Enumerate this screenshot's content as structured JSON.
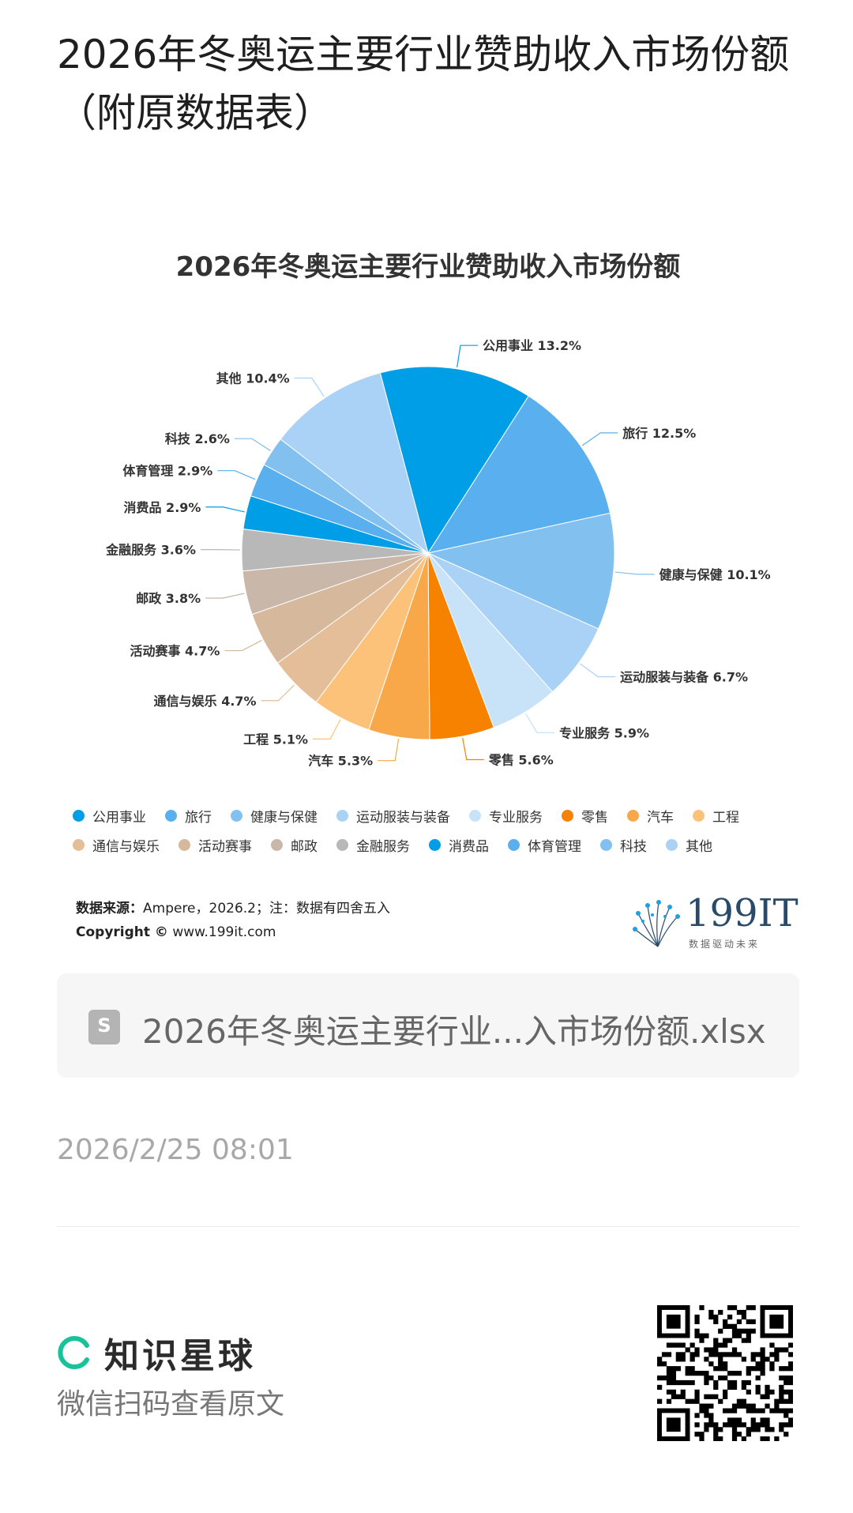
{
  "page": {
    "title": "2026年冬奥运主要行业赞助收入市场份额（附原数据表）"
  },
  "chart_data": {
    "type": "pie",
    "title": "2026年冬奥运主要行业赞助收入市场份额",
    "unit": "%",
    "slices": [
      {
        "label": "公用事业",
        "value": 13.2,
        "color": "#009ee6"
      },
      {
        "label": "旅行",
        "value": 12.5,
        "color": "#5aafee"
      },
      {
        "label": "健康与保健",
        "value": 10.1,
        "color": "#82c0f0"
      },
      {
        "label": "运动服装与装备",
        "value": 6.7,
        "color": "#aad2f6"
      },
      {
        "label": "专业服务",
        "value": 5.9,
        "color": "#c8e2f8"
      },
      {
        "label": "零售",
        "value": 5.6,
        "color": "#f78200"
      },
      {
        "label": "汽车",
        "value": 5.3,
        "color": "#f8a848"
      },
      {
        "label": "工程",
        "value": 5.1,
        "color": "#fcc27a"
      },
      {
        "label": "通信与娱乐",
        "value": 4.7,
        "color": "#e3be98"
      },
      {
        "label": "活动赛事",
        "value": 4.7,
        "color": "#d6b89c"
      },
      {
        "label": "邮政",
        "value": 3.8,
        "color": "#c9b8aa"
      },
      {
        "label": "金融服务",
        "value": 3.6,
        "color": "#b8b8b8"
      },
      {
        "label": "消费品",
        "value": 2.9,
        "color": "#009ee6"
      },
      {
        "label": "体育管理",
        "value": 2.9,
        "color": "#5aafee"
      },
      {
        "label": "科技",
        "value": 2.6,
        "color": "#82c0f0"
      },
      {
        "label": "其他",
        "value": 10.4,
        "color": "#aad2f6"
      }
    ],
    "data_labels": [
      "公用事业 13.2%",
      "旅行 12.5%",
      "健康与保健 10.1%",
      "运动服装与装备 6.7%",
      "专业服务 5.9%",
      "零售 5.6%",
      "汽车 5.3%",
      "工程 5.1%",
      "通信与娱乐 4.7%",
      "活动赛事 4.7%",
      "邮政 3.8%",
      "金融服务 3.6%",
      "消费品 2.9%",
      "体育管理 2.9%",
      "科技 2.6%",
      "其他 10.4%"
    ],
    "legend": [
      "公用事业",
      "旅行",
      "健康与保健",
      "运动服装与装备",
      "专业服务",
      "零售",
      "汽车",
      "工程",
      "通信与娱乐",
      "活动赛事",
      "邮政",
      "金融服务",
      "消费品",
      "体育管理",
      "科技",
      "其他"
    ],
    "legend_position": "bottom"
  },
  "source": {
    "label": "数据来源：",
    "text": "Ampere，2026.2；注：数据有四舍五入",
    "copyright_label": "Copyright ©",
    "copyright_url": "www.199it.com"
  },
  "brand": {
    "logo": "199IT",
    "tagline": "数据驱动未来",
    "icon": "dandelion-logo-icon"
  },
  "file": {
    "icon_letter": "S",
    "name": "2026年冬奥运主要行业...入市场份额.xlsx",
    "icon": "spreadsheet-file-icon"
  },
  "timestamp": "2026/2/25 08:01",
  "footer": {
    "planet_label": "知识星球",
    "wechat_hint": "微信扫码查看原文",
    "planet_icon": "planet-logo-icon",
    "qr_icon": "qr-code-icon"
  }
}
